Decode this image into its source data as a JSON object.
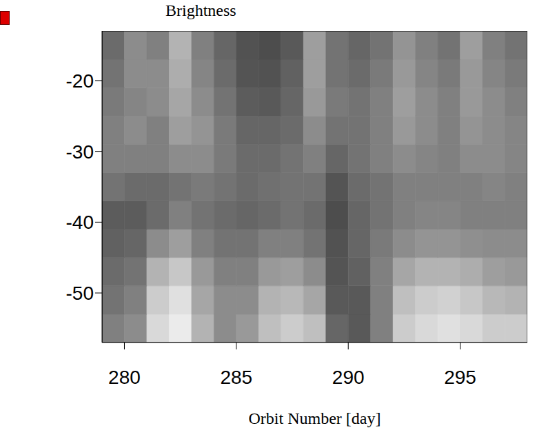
{
  "chart_data": {
    "type": "heatmap",
    "title": "Brightness",
    "x_label": "Orbit Number [day]",
    "xlim": [
      279,
      298
    ],
    "xticks": [
      280,
      285,
      290,
      295
    ],
    "ylim": [
      -57,
      -13
    ],
    "yticks": [
      -50,
      -40,
      -30,
      -20
    ],
    "x_edges": [
      279,
      280,
      281,
      282,
      283,
      284,
      285,
      286,
      287,
      288,
      289,
      290,
      291,
      292,
      293,
      294,
      295,
      296,
      297,
      298
    ],
    "y_edges": [
      -57,
      -53,
      -49,
      -45,
      -41,
      -37,
      -33,
      -29,
      -25,
      -21,
      -17,
      -13
    ],
    "zlim": [
      0,
      1
    ],
    "cells": [
      [
        0.5,
        0.55,
        0.85,
        0.92,
        0.7,
        0.55,
        0.6,
        0.75,
        0.8,
        0.75,
        0.4,
        0.35,
        0.5,
        0.8,
        0.85,
        0.88,
        0.85,
        0.8,
        0.8
      ],
      [
        0.45,
        0.5,
        0.8,
        0.88,
        0.65,
        0.55,
        0.55,
        0.7,
        0.72,
        0.65,
        0.35,
        0.35,
        0.5,
        0.75,
        0.8,
        0.82,
        0.78,
        0.72,
        0.7
      ],
      [
        0.42,
        0.45,
        0.7,
        0.78,
        0.6,
        0.5,
        0.5,
        0.6,
        0.62,
        0.55,
        0.33,
        0.38,
        0.5,
        0.65,
        0.7,
        0.7,
        0.68,
        0.62,
        0.6
      ],
      [
        0.38,
        0.4,
        0.55,
        0.62,
        0.5,
        0.45,
        0.45,
        0.5,
        0.5,
        0.45,
        0.32,
        0.4,
        0.48,
        0.55,
        0.58,
        0.58,
        0.56,
        0.55,
        0.55
      ],
      [
        0.36,
        0.36,
        0.42,
        0.5,
        0.45,
        0.42,
        0.4,
        0.42,
        0.45,
        0.42,
        0.3,
        0.4,
        0.45,
        0.5,
        0.52,
        0.52,
        0.5,
        0.5,
        0.5
      ],
      [
        0.45,
        0.42,
        0.42,
        0.45,
        0.48,
        0.45,
        0.42,
        0.44,
        0.45,
        0.45,
        0.33,
        0.42,
        0.45,
        0.5,
        0.5,
        0.5,
        0.5,
        0.52,
        0.5
      ],
      [
        0.5,
        0.5,
        0.5,
        0.55,
        0.55,
        0.48,
        0.42,
        0.42,
        0.45,
        0.5,
        0.4,
        0.45,
        0.5,
        0.55,
        0.52,
        0.5,
        0.55,
        0.55,
        0.52
      ],
      [
        0.5,
        0.55,
        0.5,
        0.62,
        0.58,
        0.48,
        0.4,
        0.4,
        0.42,
        0.55,
        0.45,
        0.45,
        0.5,
        0.6,
        0.55,
        0.5,
        0.58,
        0.55,
        0.52
      ],
      [
        0.48,
        0.52,
        0.55,
        0.65,
        0.55,
        0.45,
        0.36,
        0.35,
        0.4,
        0.6,
        0.48,
        0.45,
        0.5,
        0.62,
        0.55,
        0.5,
        0.6,
        0.55,
        0.5
      ],
      [
        0.45,
        0.55,
        0.55,
        0.68,
        0.52,
        0.42,
        0.33,
        0.32,
        0.38,
        0.62,
        0.45,
        0.42,
        0.48,
        0.6,
        0.52,
        0.48,
        0.6,
        0.52,
        0.48
      ],
      [
        0.42,
        0.55,
        0.5,
        0.7,
        0.5,
        0.4,
        0.32,
        0.3,
        0.35,
        0.62,
        0.45,
        0.4,
        0.45,
        0.58,
        0.5,
        0.45,
        0.62,
        0.5,
        0.45
      ]
    ]
  }
}
